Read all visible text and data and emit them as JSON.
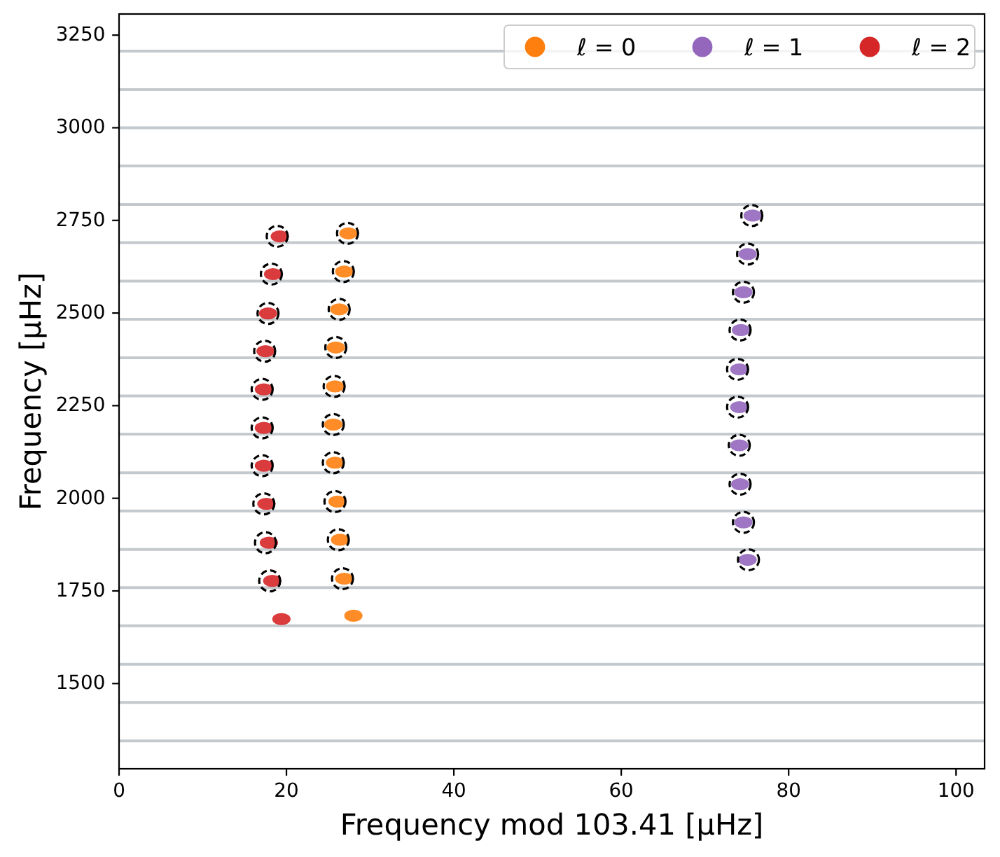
{
  "chart_data": {
    "type": "scatter",
    "xlabel": "Frequency mod 103.41 [μHz]",
    "ylabel": "Frequency [μHz]",
    "xlim": [
      0,
      103.41
    ],
    "ylim": [
      1270,
      3307
    ],
    "xticks": [
      0,
      20,
      40,
      60,
      80,
      100
    ],
    "yticks": [
      1500,
      1750,
      2000,
      2250,
      2500,
      2750,
      3000,
      3250
    ],
    "legend": "top right",
    "marker": "circle",
    "series": [
      {
        "name": "ℓ = 0",
        "color": "#ff7f0e",
        "x": [
          28.0,
          26.9,
          26.4,
          26.1,
          25.8,
          25.6,
          25.8,
          25.9,
          26.3,
          26.9,
          27.4
        ],
        "values": [
          1683,
          1783,
          1888,
          1991,
          2096,
          2199,
          2302,
          2407,
          2510,
          2612,
          2715
        ]
      },
      {
        "name": "ℓ = 1",
        "color": "#9467bd",
        "x": [
          75.1,
          74.6,
          74.2,
          74.1,
          74.1,
          74.1,
          74.3,
          74.6,
          75.1,
          75.7
        ],
        "values": [
          1834,
          1935,
          2038,
          2143,
          2246,
          2348,
          2454,
          2556,
          2659,
          2763
        ]
      },
      {
        "name": "ℓ = 2",
        "color": "#d62728",
        "x": [
          19.4,
          18.3,
          17.9,
          17.6,
          17.3,
          17.3,
          17.3,
          17.5,
          17.8,
          18.4,
          19.2
        ],
        "values": [
          1674,
          1777,
          1880,
          1985,
          2088,
          2190,
          2294,
          2397,
          2499,
          2605,
          2707
        ]
      },
      {
        "color": "#000000",
        "line_style": "dashed",
        "x": [
          18.0,
          17.5,
          17.3,
          17.1,
          17.1,
          17.1,
          17.4,
          17.8,
          18.2,
          18.9,
          26.7,
          26.2,
          25.8,
          25.6,
          25.6,
          25.7,
          25.9,
          26.3,
          26.8,
          27.3,
          75.2,
          74.6,
          74.2,
          74.1,
          73.9,
          73.9,
          74.2,
          74.6,
          75.1,
          75.6
        ],
        "values": [
          1777,
          1880,
          1985,
          2088,
          2190,
          2294,
          2397,
          2499,
          2605,
          2707,
          1783,
          1888,
          1991,
          2096,
          2199,
          2302,
          2407,
          2510,
          2612,
          2715,
          1834,
          1935,
          2038,
          2143,
          2246,
          2348,
          2454,
          2556,
          2659,
          2763
        ]
      }
    ],
    "ref_lines": [
      {
        "axis": "y",
        "value": 1345,
        "color": "#c4c9ce"
      },
      {
        "axis": "y",
        "value": 1449,
        "color": "#c4c9ce"
      },
      {
        "axis": "y",
        "value": 1552,
        "color": "#c4c9ce"
      },
      {
        "axis": "y",
        "value": 1656,
        "color": "#c4c9ce"
      },
      {
        "axis": "y",
        "value": 1759,
        "color": "#c4c9ce"
      },
      {
        "axis": "y",
        "value": 1862,
        "color": "#c4c9ce"
      },
      {
        "axis": "y",
        "value": 1966,
        "color": "#c4c9ce"
      },
      {
        "axis": "y",
        "value": 2069,
        "color": "#c4c9ce"
      },
      {
        "axis": "y",
        "value": 2173,
        "color": "#c4c9ce"
      },
      {
        "axis": "y",
        "value": 2276,
        "color": "#c4c9ce"
      },
      {
        "axis": "y",
        "value": 2379,
        "color": "#c4c9ce"
      },
      {
        "axis": "y",
        "value": 2483,
        "color": "#c4c9ce"
      },
      {
        "axis": "y",
        "value": 2586,
        "color": "#c4c9ce"
      },
      {
        "axis": "y",
        "value": 2690,
        "color": "#c4c9ce"
      },
      {
        "axis": "y",
        "value": 2793,
        "color": "#c4c9ce"
      },
      {
        "axis": "y",
        "value": 2897,
        "color": "#c4c9ce"
      },
      {
        "axis": "y",
        "value": 3000,
        "color": "#c4c9ce"
      },
      {
        "axis": "y",
        "value": 3103,
        "color": "#c4c9ce"
      },
      {
        "axis": "y",
        "value": 3207,
        "color": "#c4c9ce"
      }
    ]
  }
}
